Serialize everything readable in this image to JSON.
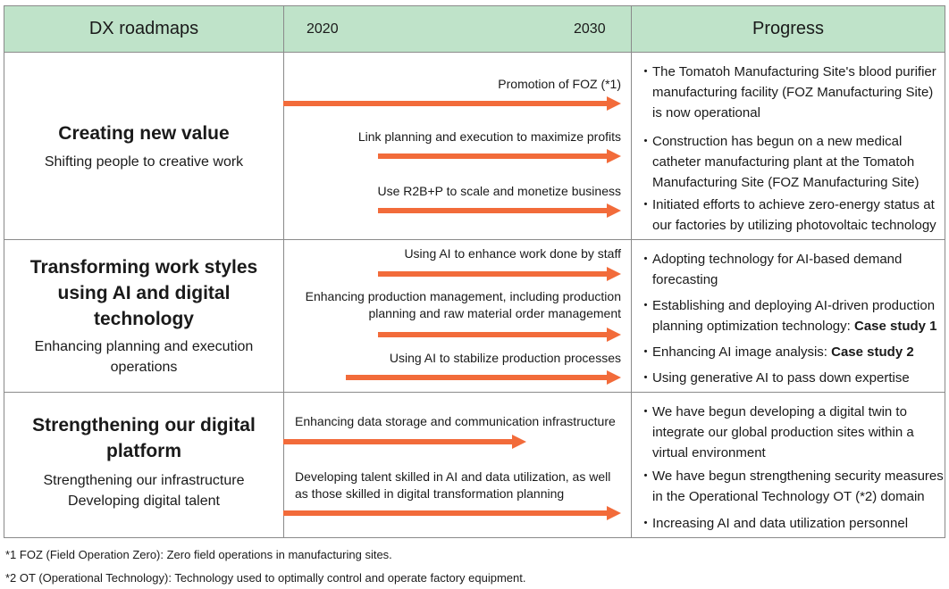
{
  "header": {
    "col1": "DX roadmaps",
    "year_start": "2020",
    "year_end": "2030",
    "col3": "Progress"
  },
  "rows": [
    {
      "title_lines": [
        "Creating new value"
      ],
      "subtitle_lines": [
        "Shifting people to creative work"
      ],
      "arrows": [
        {
          "label_lines": [
            "Promotion of FOZ (*1)"
          ],
          "start": 2020,
          "end": 2030
        },
        {
          "label_lines": [
            "Link planning and execution to maximize profits"
          ],
          "start": 2023,
          "end": 2030
        },
        {
          "label_lines": [
            "Use R2B+P to scale and monetize business"
          ],
          "start": 2023,
          "end": 2030
        }
      ],
      "progress": [
        {
          "text": "The Tomatoh Manufacturing Site's blood purifier manufacturing facility (FOZ Manufacturing Site) is now operational",
          "bold": ""
        },
        {
          "text": "Construction has begun on a new medical catheter manufacturing plant at the Tomatoh Manufacturing Site (FOZ Manufacturing Site)",
          "bold": ""
        },
        {
          "text": "Initiated efforts to achieve zero-energy status at our factories by utilizing photovoltaic technology",
          "bold": ""
        }
      ]
    },
    {
      "title_lines": [
        "Transforming work styles",
        "using AI and digital",
        "technology"
      ],
      "subtitle_lines": [
        "Enhancing planning and execution",
        "operations"
      ],
      "arrows": [
        {
          "label_lines": [
            "Using AI to enhance work done by staff"
          ],
          "start": 2023,
          "end": 2030
        },
        {
          "label_lines": [
            "Enhancing production management, including production",
            "planning and raw material order management"
          ],
          "start": 2023,
          "end": 2030
        },
        {
          "label_lines": [
            "Using AI to stabilize production processes"
          ],
          "start": 2022,
          "end": 2030
        }
      ],
      "progress": [
        {
          "text": "Adopting technology for AI-based demand forecasting",
          "bold": ""
        },
        {
          "text": "Establishing and deploying AI-driven production planning optimization technology: ",
          "bold": "Case study 1"
        },
        {
          "text": "Enhancing AI image analysis: ",
          "bold": "Case study 2"
        },
        {
          "text": "Using generative AI to pass down expertise",
          "bold": ""
        }
      ]
    },
    {
      "title_lines": [
        "Strengthening our digital",
        "platform"
      ],
      "subtitle_lines": [
        "Strengthening our infrastructure",
        "Developing digital talent"
      ],
      "arrows": [
        {
          "label_lines": [
            "Enhancing data storage and communication infrastructure"
          ],
          "start": 2020,
          "end": 2027
        },
        {
          "label_lines": [
            "Developing talent skilled in AI and data utilization, as well",
            "as those skilled in digital transformation planning"
          ],
          "start": 2020,
          "end": 2030
        }
      ],
      "progress": [
        {
          "text": "We have begun developing a digital twin to integrate our global production sites within a virtual environment",
          "bold": ""
        },
        {
          "text": "We have begun strengthening security measures in the Operational Technology OT (*2) domain",
          "bold": ""
        },
        {
          "text": "Increasing AI and data utilization personnel",
          "bold": ""
        }
      ]
    }
  ],
  "footnotes": [
    "*1 FOZ (Field Operation Zero): Zero field operations in manufacturing sites.",
    "*2 OT (Operational Technology): Technology used to optimally control and operate factory equipment."
  ],
  "colors": {
    "arrow": "#f26b3a",
    "header_bg": "#bfe3c9",
    "border": "#8a8a8a"
  }
}
